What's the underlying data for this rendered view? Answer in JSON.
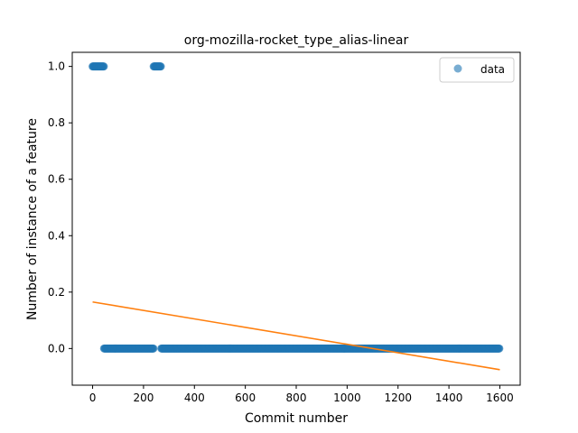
{
  "chart_data": {
    "type": "scatter",
    "title": "org-mozilla-rocket_type_alias-linear",
    "xlabel": "Commit number",
    "ylabel": "Number of instance of a feature",
    "xlim": [
      -80,
      1680
    ],
    "ylim": [
      -0.13,
      1.05
    ],
    "xticks": [
      0,
      200,
      400,
      600,
      800,
      1000,
      1200,
      1400,
      1600
    ],
    "yticks": [
      0.0,
      0.2,
      0.4,
      0.6,
      0.8,
      1.0
    ],
    "xtick_labels": [
      "0",
      "200",
      "400",
      "600",
      "800",
      "1000",
      "1200",
      "1400",
      "1600"
    ],
    "ytick_labels": [
      "0.0",
      "0.2",
      "0.4",
      "0.6",
      "0.8",
      "1.0"
    ],
    "legend": {
      "label": "data",
      "placement": "upper right"
    },
    "colors": {
      "data": "#1f77b4",
      "fit": "#ff7f0e"
    },
    "series": [
      {
        "name": "data",
        "kind": "scatter",
        "segments": [
          {
            "x_start": 0,
            "x_end": 45,
            "y": 1.0
          },
          {
            "x_start": 45,
            "x_end": 240,
            "y": 0.0
          },
          {
            "x_start": 240,
            "x_end": 270,
            "y": 1.0
          },
          {
            "x_start": 270,
            "x_end": 1600,
            "y": 0.0
          }
        ]
      },
      {
        "kind": "line",
        "x": [
          0,
          1600
        ],
        "y": [
          0.165,
          -0.075
        ]
      }
    ]
  }
}
